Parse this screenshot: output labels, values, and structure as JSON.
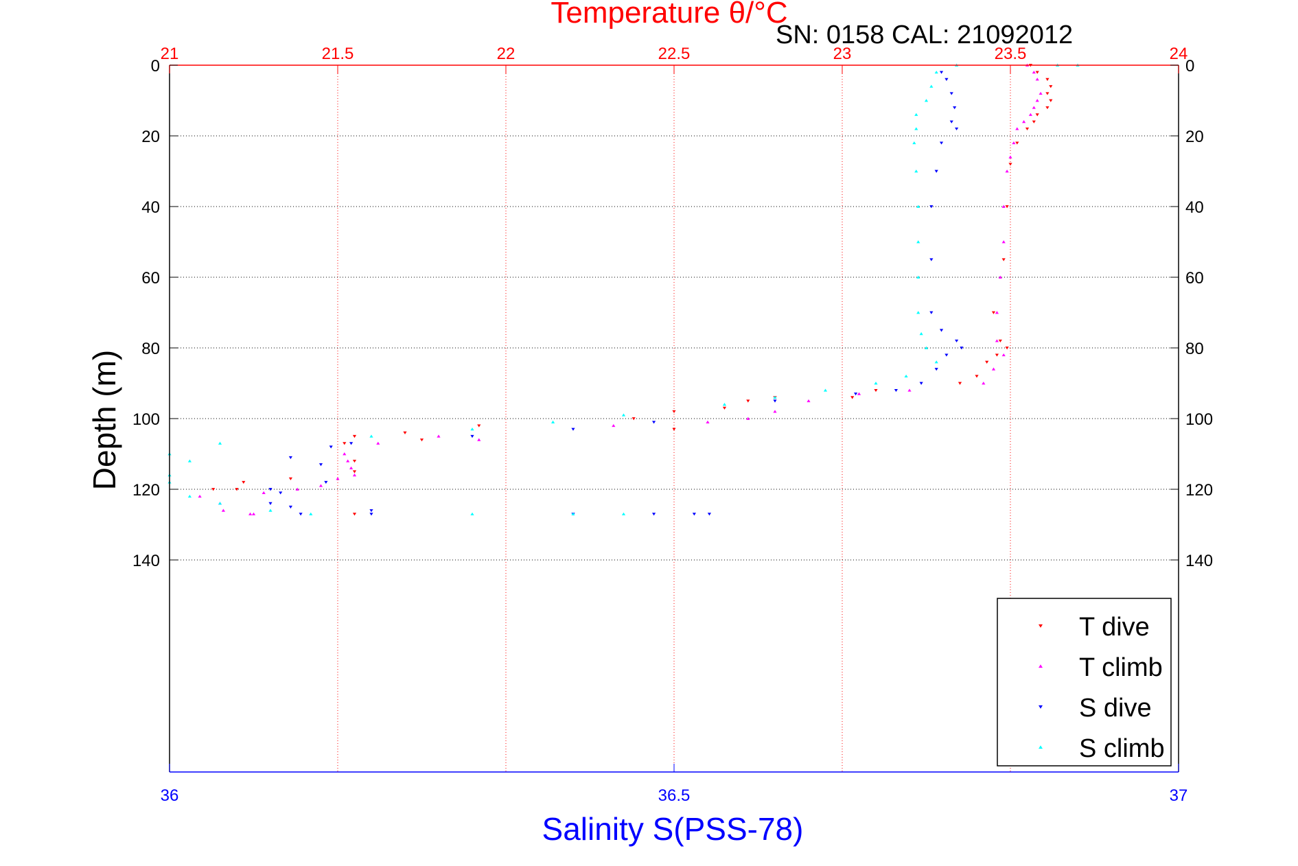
{
  "figure": {
    "top_title": "Temperature θ/°C",
    "instrument_label": "SN: 0158  CAL: 21092012",
    "bottom_title": "Salinity S(PSS-78)",
    "y_title": "Depth (m)"
  },
  "chart_data": {
    "type": "scatter",
    "title": "Temperature θ/°C",
    "xlabel": "Salinity S(PSS-78)",
    "ylabel": "Depth (m)",
    "x_top": {
      "label": "Temperature θ/°C",
      "range": [
        21,
        24
      ],
      "ticks": [
        21,
        21.5,
        22,
        22.5,
        23,
        23.5,
        24
      ],
      "tick_labels": [
        "21",
        "21.5",
        "22",
        "22.5",
        "23",
        "23.5",
        "24"
      ],
      "color": "#ff0000"
    },
    "x_bottom": {
      "label": "Salinity S(PSS-78)",
      "range": [
        36,
        37
      ],
      "ticks": [
        36,
        36.5,
        37
      ],
      "tick_labels": [
        "36",
        "36.5",
        "37"
      ],
      "color": "#0000ff"
    },
    "y": {
      "label": "Depth (m)",
      "range": [
        0,
        200
      ],
      "reversed": true,
      "ticks": [
        0,
        20,
        40,
        60,
        80,
        100,
        120,
        140
      ],
      "tick_labels": [
        "0",
        "20",
        "40",
        "60",
        "80",
        "100",
        "120",
        "140"
      ]
    },
    "grid": true,
    "legend_position": "bottom-right",
    "series": [
      {
        "name": "T dive",
        "axis": "top",
        "marker": "triangle-down",
        "color": "#ff0000",
        "points": [
          [
            23.56,
            0
          ],
          [
            23.58,
            2
          ],
          [
            23.61,
            4
          ],
          [
            23.62,
            6
          ],
          [
            23.61,
            8
          ],
          [
            23.62,
            10
          ],
          [
            23.61,
            12
          ],
          [
            23.58,
            14
          ],
          [
            23.57,
            16
          ],
          [
            23.55,
            18
          ],
          [
            23.52,
            22
          ],
          [
            23.5,
            28
          ],
          [
            23.49,
            40
          ],
          [
            23.48,
            55
          ],
          [
            23.45,
            70
          ],
          [
            23.47,
            78
          ],
          [
            23.49,
            80
          ],
          [
            23.46,
            82
          ],
          [
            23.43,
            84
          ],
          [
            23.4,
            88
          ],
          [
            23.35,
            90
          ],
          [
            23.1,
            92
          ],
          [
            23.03,
            94
          ],
          [
            22.8,
            94
          ],
          [
            22.72,
            95
          ],
          [
            22.65,
            97
          ],
          [
            22.5,
            98
          ],
          [
            22.38,
            100
          ],
          [
            22.5,
            103
          ],
          [
            21.92,
            102
          ],
          [
            21.7,
            104
          ],
          [
            21.75,
            106
          ],
          [
            21.55,
            105
          ],
          [
            21.52,
            107
          ],
          [
            21.55,
            112
          ],
          [
            21.55,
            115
          ],
          [
            21.36,
            117
          ],
          [
            21.22,
            118
          ],
          [
            21.2,
            120
          ],
          [
            21.13,
            120
          ],
          [
            21.55,
            127
          ]
        ]
      },
      {
        "name": "T climb",
        "axis": "top",
        "marker": "triangle-up",
        "color": "#ff00ff",
        "points": [
          [
            23.55,
            0
          ],
          [
            23.57,
            2
          ],
          [
            23.58,
            4
          ],
          [
            23.59,
            8
          ],
          [
            23.58,
            10
          ],
          [
            23.57,
            12
          ],
          [
            23.56,
            14
          ],
          [
            23.54,
            16
          ],
          [
            23.52,
            18
          ],
          [
            23.51,
            22
          ],
          [
            23.5,
            26
          ],
          [
            23.49,
            30
          ],
          [
            23.48,
            40
          ],
          [
            23.48,
            50
          ],
          [
            23.47,
            60
          ],
          [
            23.46,
            70
          ],
          [
            23.46,
            78
          ],
          [
            23.48,
            82
          ],
          [
            23.45,
            86
          ],
          [
            23.42,
            90
          ],
          [
            23.2,
            92
          ],
          [
            23.05,
            93
          ],
          [
            22.9,
            95
          ],
          [
            22.8,
            98
          ],
          [
            22.72,
            100
          ],
          [
            22.6,
            101
          ],
          [
            22.32,
            102
          ],
          [
            21.92,
            106
          ],
          [
            21.8,
            105
          ],
          [
            21.62,
            107
          ],
          [
            21.52,
            110
          ],
          [
            21.53,
            112
          ],
          [
            21.54,
            114
          ],
          [
            21.55,
            116
          ],
          [
            21.5,
            117
          ],
          [
            21.45,
            119
          ],
          [
            21.38,
            120
          ],
          [
            21.28,
            121
          ],
          [
            21.09,
            122
          ],
          [
            21.15,
            124
          ],
          [
            21.16,
            126
          ],
          [
            21.24,
            127
          ],
          [
            21.25,
            127
          ]
        ]
      },
      {
        "name": "S dive",
        "axis": "bottom",
        "points": [
          [
            36.765,
            2
          ],
          [
            36.77,
            4
          ],
          [
            36.775,
            8
          ],
          [
            36.778,
            12
          ],
          [
            36.775,
            16
          ],
          [
            36.78,
            18
          ],
          [
            36.765,
            22
          ],
          [
            36.76,
            30
          ],
          [
            36.755,
            40
          ],
          [
            36.755,
            55
          ],
          [
            36.755,
            70
          ],
          [
            36.765,
            75
          ],
          [
            36.78,
            78
          ],
          [
            36.785,
            80
          ],
          [
            36.77,
            82
          ],
          [
            36.76,
            86
          ],
          [
            36.745,
            90
          ],
          [
            36.72,
            92
          ],
          [
            36.68,
            93
          ],
          [
            36.6,
            95
          ],
          [
            36.48,
            101
          ],
          [
            36.4,
            103
          ],
          [
            36.3,
            105
          ],
          [
            36.18,
            107
          ],
          [
            36.16,
            108
          ],
          [
            36.12,
            111
          ],
          [
            36.15,
            113
          ],
          [
            36.155,
            118
          ],
          [
            36.1,
            120
          ],
          [
            36.11,
            121
          ],
          [
            36.1,
            124
          ],
          [
            36.13,
            127
          ],
          [
            36.2,
            127
          ],
          [
            36.4,
            127
          ],
          [
            36.48,
            127
          ],
          [
            36.52,
            127
          ],
          [
            36.535,
            127
          ],
          [
            36.2,
            126
          ],
          [
            36.12,
            125
          ]
        ],
        "marker": "triangle-down",
        "color": "#0000ff"
      },
      {
        "name": "S climb",
        "axis": "bottom",
        "marker": "triangle-up",
        "color": "#00ffff",
        "points": [
          [
            36.78,
            0
          ],
          [
            36.88,
            0
          ],
          [
            36.9,
            0
          ],
          [
            36.76,
            2
          ],
          [
            36.755,
            6
          ],
          [
            36.75,
            10
          ],
          [
            36.74,
            14
          ],
          [
            36.74,
            18
          ],
          [
            36.738,
            22
          ],
          [
            36.74,
            30
          ],
          [
            36.742,
            40
          ],
          [
            36.742,
            50
          ],
          [
            36.742,
            60
          ],
          [
            36.742,
            70
          ],
          [
            36.745,
            76
          ],
          [
            36.75,
            80
          ],
          [
            36.76,
            84
          ],
          [
            36.73,
            88
          ],
          [
            36.7,
            90
          ],
          [
            36.65,
            92
          ],
          [
            36.6,
            94
          ],
          [
            36.55,
            96
          ],
          [
            36.45,
            99
          ],
          [
            36.38,
            101
          ],
          [
            36.3,
            103
          ],
          [
            36.2,
            105
          ],
          [
            36.05,
            107
          ],
          [
            35.99,
            108
          ],
          [
            36.0,
            110
          ],
          [
            36.02,
            112
          ],
          [
            36.0,
            116
          ],
          [
            36.0,
            118
          ],
          [
            35.995,
            120
          ],
          [
            36.02,
            122
          ],
          [
            36.05,
            124
          ],
          [
            36.1,
            126
          ],
          [
            36.14,
            127
          ],
          [
            36.3,
            127
          ],
          [
            36.4,
            127
          ],
          [
            36.45,
            127
          ]
        ]
      }
    ]
  }
}
